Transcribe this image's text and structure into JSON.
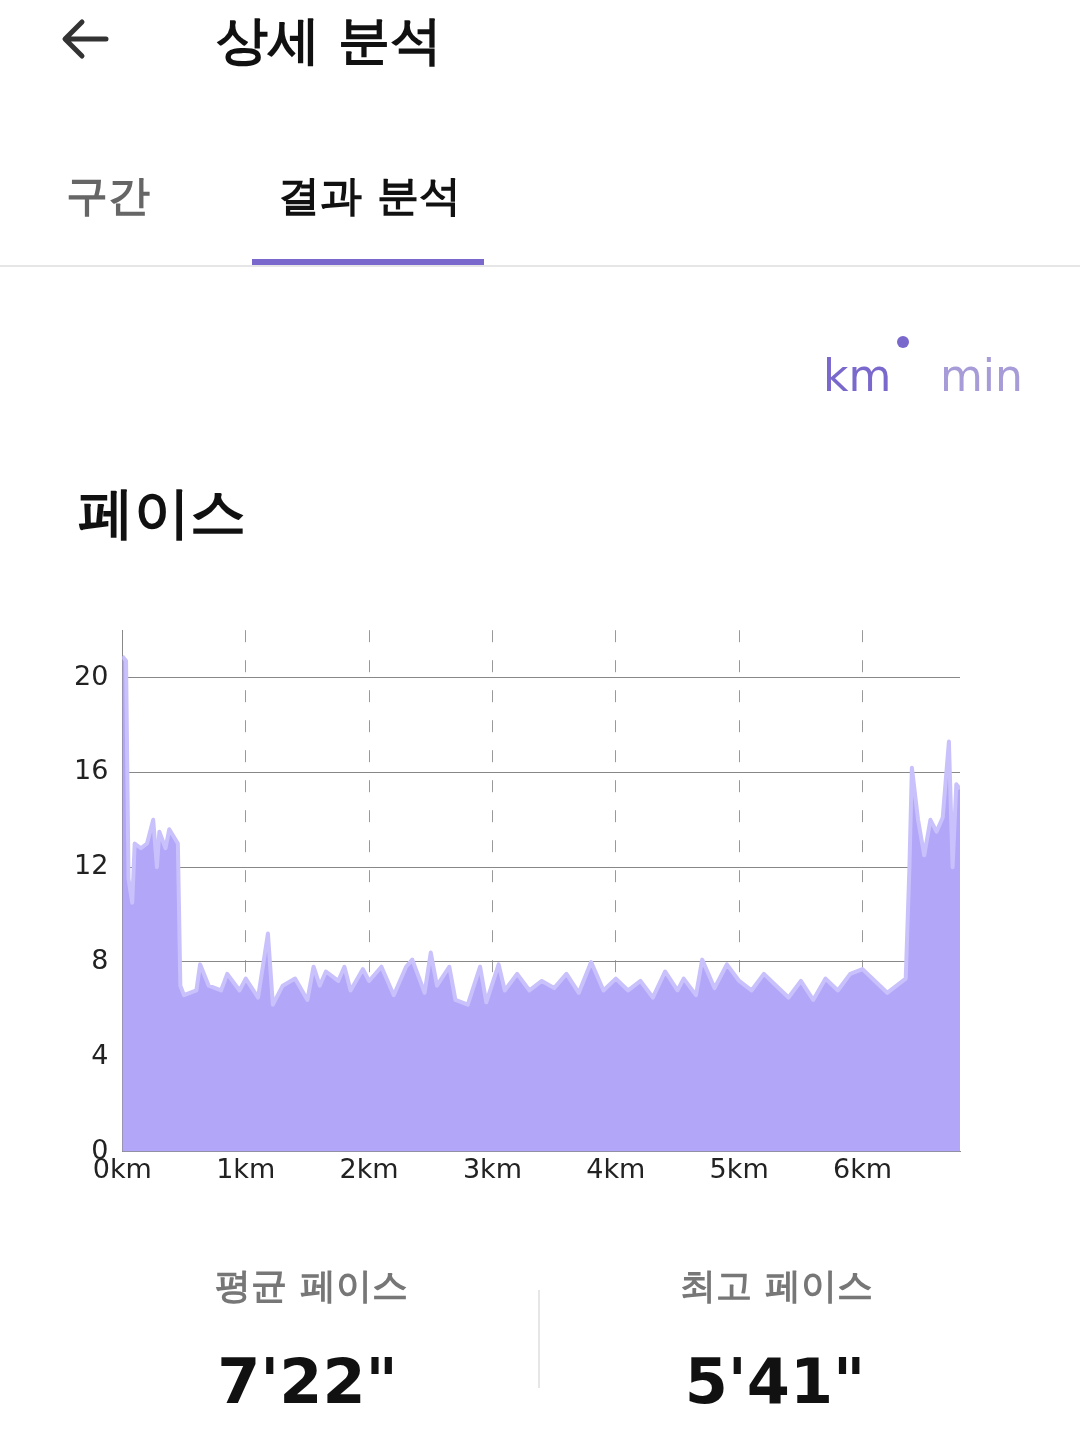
{
  "chart_data": {
    "type": "area",
    "title": "페이스",
    "annotations": [
      "상세 분석",
      "구간",
      "결과 분석",
      "km",
      "min",
      "평균 페이스",
      "7'22\"",
      "최고 페이스",
      "5'41\""
    ],
    "x": [
      0,
      0.03,
      0.05,
      0.08,
      0.1,
      0.15,
      0.2,
      0.25,
      0.28,
      0.3,
      0.35,
      0.38,
      0.45,
      0.47,
      0.5,
      0.6,
      0.63,
      0.7,
      0.8,
      0.85,
      0.95,
      1.0,
      1.1,
      1.18,
      1.22,
      1.3,
      1.4,
      1.5,
      1.55,
      1.6,
      1.65,
      1.75,
      1.8,
      1.85,
      1.95,
      2.0,
      2.1,
      2.2,
      2.3,
      2.35,
      2.45,
      2.5,
      2.55,
      2.65,
      2.7,
      2.8,
      2.9,
      2.95,
      3.05,
      3.1,
      3.2,
      3.3,
      3.4,
      3.5,
      3.6,
      3.7,
      3.8,
      3.9,
      4.0,
      4.1,
      4.2,
      4.3,
      4.4,
      4.5,
      4.55,
      4.65,
      4.7,
      4.8,
      4.9,
      5.0,
      5.1,
      5.2,
      5.3,
      5.4,
      5.5,
      5.6,
      5.7,
      5.8,
      5.9,
      6.0,
      6.1,
      6.2,
      6.3,
      6.35,
      6.38,
      6.4,
      6.45,
      6.5,
      6.55,
      6.6,
      6.65,
      6.7,
      6.73,
      6.76,
      6.79
    ],
    "series": [
      {
        "color": "#b1a6f8",
        "values": [
          20.9,
          20.7,
          11.5,
          10.5,
          13,
          12.8,
          13,
          14,
          12,
          13.5,
          12.8,
          13.6,
          13,
          7,
          6.6,
          6.8,
          7.9,
          7,
          6.8,
          7.5,
          6.8,
          7.3,
          6.5,
          9.2,
          6.2,
          7,
          7.3,
          6.4,
          7.8,
          7,
          7.6,
          7.2,
          7.8,
          6.8,
          7.7,
          7.2,
          7.8,
          6.6,
          7.8,
          8.1,
          6.7,
          8.4,
          7,
          7.8,
          6.4,
          6.2,
          7.8,
          6.3,
          7.9,
          6.8,
          7.5,
          6.8,
          7.2,
          6.9,
          7.5,
          6.7,
          8,
          6.8,
          7.3,
          6.8,
          7.2,
          6.5,
          7.6,
          6.8,
          7.3,
          6.6,
          8.1,
          6.9,
          7.9,
          7.2,
          6.8,
          7.5,
          7,
          6.5,
          7.2,
          6.4,
          7.3,
          6.8,
          7.5,
          7.7,
          7.2,
          6.7,
          7.1,
          7.3,
          12,
          16.2,
          14,
          12.5,
          14,
          13.5,
          14.1,
          17.3,
          12,
          15.5,
          15.3
        ]
      }
    ],
    "xlim": [
      0,
      6.79
    ],
    "xticks": [
      {
        "value": 0,
        "label": "0km"
      },
      {
        "value": 1,
        "label": "1km"
      },
      {
        "value": 2,
        "label": "2km"
      },
      {
        "value": 3,
        "label": "3km"
      },
      {
        "value": 4,
        "label": "4km"
      },
      {
        "value": 5,
        "label": "5km"
      },
      {
        "value": 6,
        "label": "6km"
      }
    ],
    "ylim": [
      0,
      22
    ],
    "yticks": [
      0,
      4,
      8,
      12,
      16,
      20
    ],
    "grid": true,
    "legend": false
  }
}
